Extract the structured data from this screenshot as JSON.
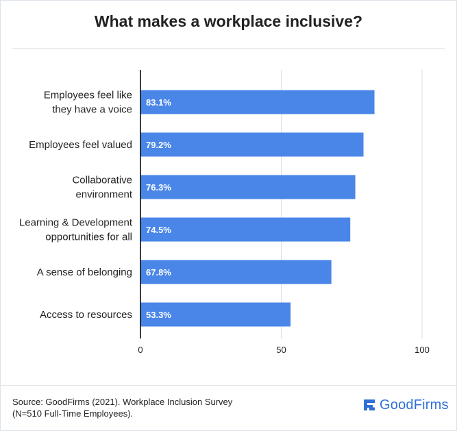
{
  "header": {
    "title": "What makes a workplace inclusive?"
  },
  "footer": {
    "source_line1": "Source: GoodFirms (2021). Workplace Inclusion Survey",
    "source_line2": "(N=510 Full-Time Employees).",
    "brand": "GoodFirms",
    "brand_icon": "goodfirms-logo-icon",
    "brand_color": "#2f6fd6"
  },
  "colors": {
    "bar": "#4a86e8",
    "bar_label": "#ffffff",
    "grid": "#dddddd",
    "axis": "#000000"
  },
  "chart_data": {
    "type": "bar",
    "orientation": "horizontal",
    "title": "What makes a workplace inclusive?",
    "categories": [
      [
        "Employees feel like",
        "they have a voice"
      ],
      [
        "Employees feel valued"
      ],
      [
        "Collaborative",
        "environment"
      ],
      [
        "Learning & Development",
        "opportunities for all"
      ],
      [
        "A sense of belonging"
      ],
      [
        "Access to resources"
      ]
    ],
    "values": [
      83.1,
      79.2,
      76.3,
      74.5,
      67.8,
      53.3
    ],
    "value_labels": [
      "83.1%",
      "79.2%",
      "76.3%",
      "74.5%",
      "67.8%",
      "53.3%"
    ],
    "xlim": [
      0,
      100
    ],
    "xticks": [
      0,
      50,
      100
    ],
    "xtick_labels": [
      "0",
      "50",
      "100"
    ],
    "grid": true,
    "legend": "none"
  }
}
